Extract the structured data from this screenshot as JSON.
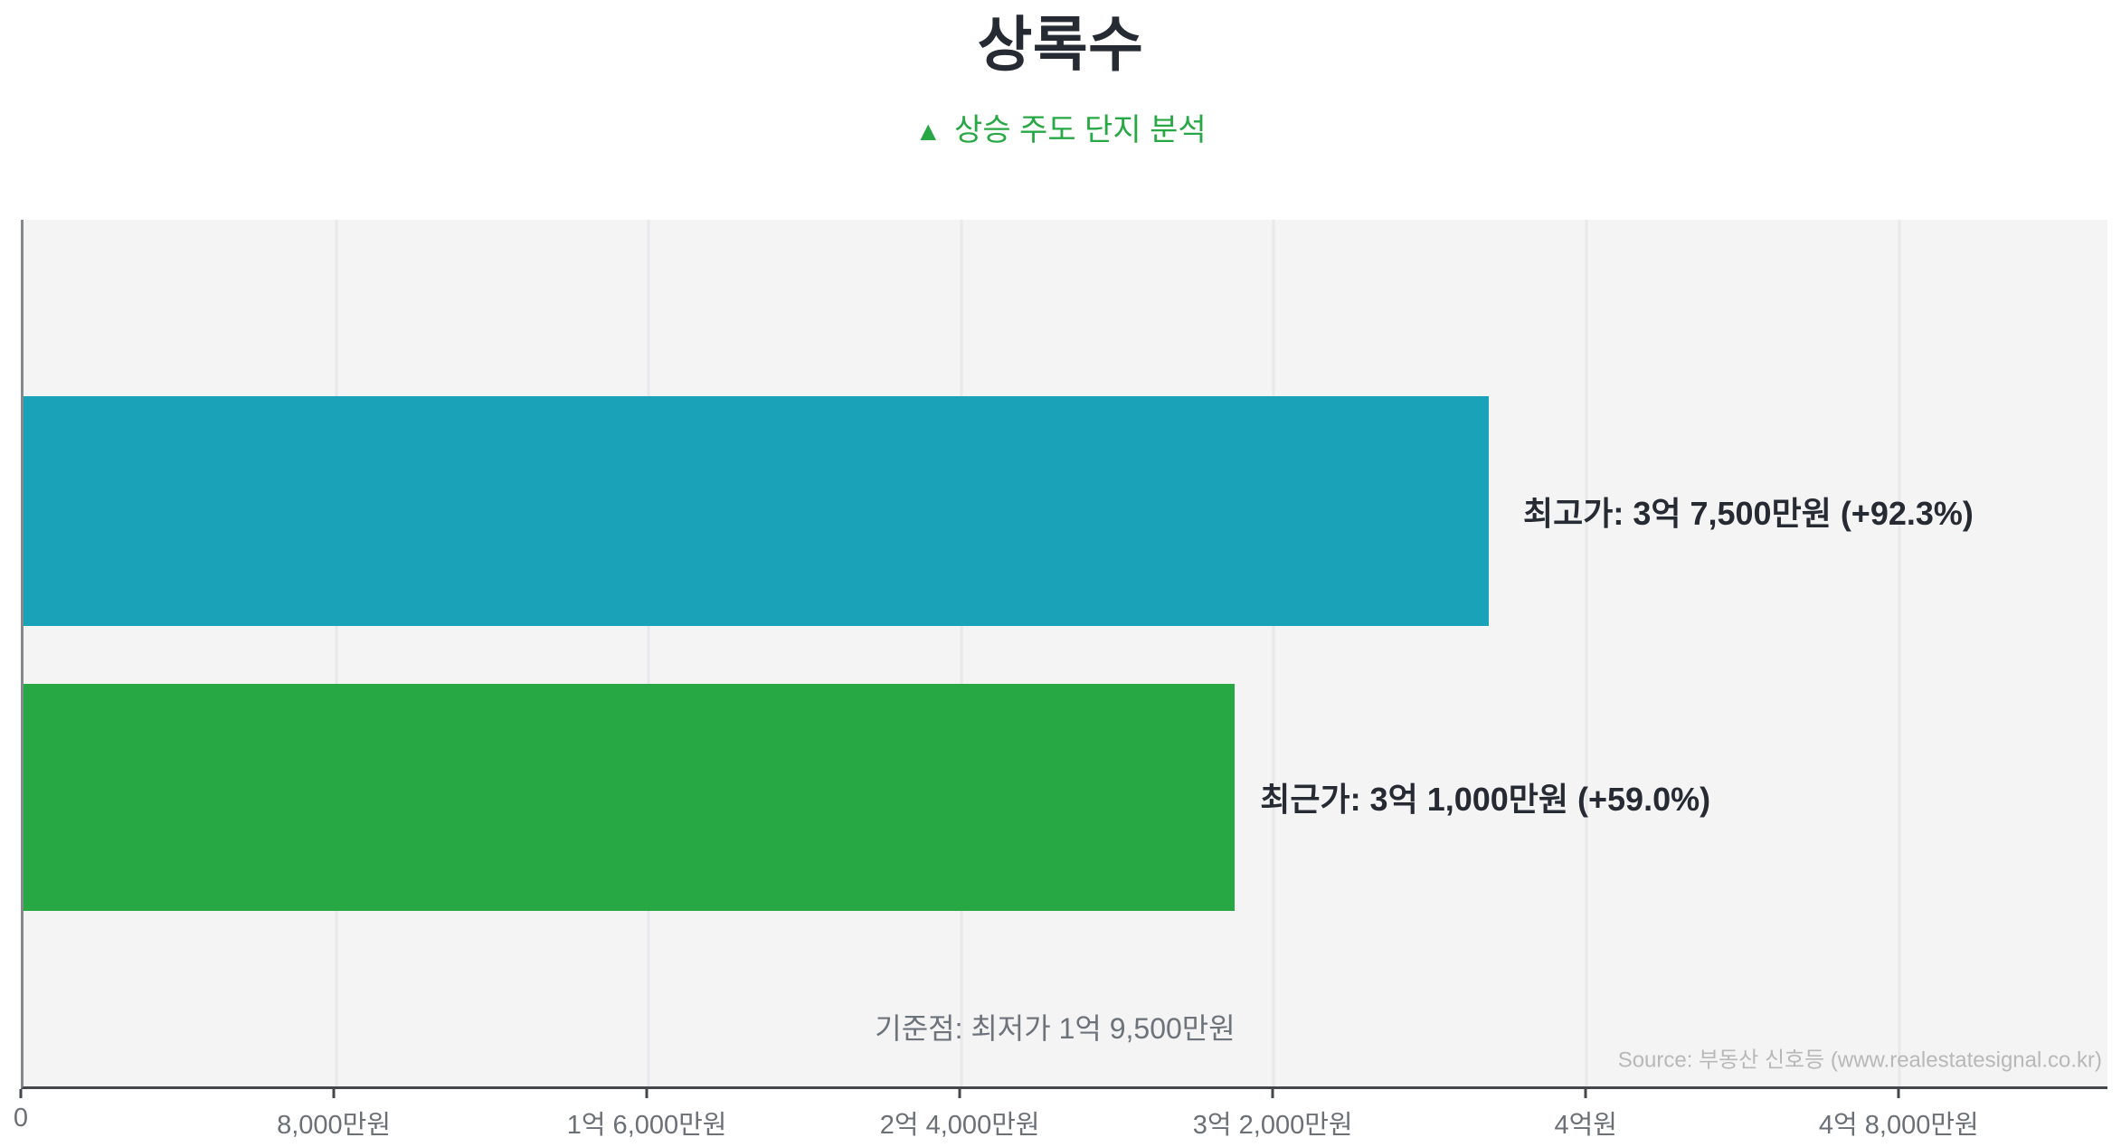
{
  "page": {
    "background": "#ffffff"
  },
  "header": {
    "title": "상록수",
    "subtitle_marker": "▲",
    "subtitle_text": "상승 주도 단지 분석"
  },
  "chart_data": {
    "type": "bar",
    "orientation": "horizontal",
    "unit": "만원",
    "title": "상록수",
    "subtitle": "▲ 상승 주도 단지 분석",
    "series": [
      {
        "name": "최고가",
        "value_man": 37500,
        "display": "최고가: 3억 7,500만원 (+92.3%)",
        "pct_change": "+92.3%",
        "color": "#1aa2b8"
      },
      {
        "name": "최근가",
        "value_man": 31000,
        "display": "최근가: 3억 1,000만원 (+59.0%)",
        "pct_change": "+59.0%",
        "color": "#28a745"
      }
    ],
    "baseline": {
      "label": "기준점: 최저가 1억 9,500만원",
      "value_man": 19500
    },
    "x_ticks": [
      {
        "label": "0",
        "value_man": 0
      },
      {
        "label": "8,000만원",
        "value_man": 8000
      },
      {
        "label": "1억 6,000만원",
        "value_man": 16000
      },
      {
        "label": "2억 4,000만원",
        "value_man": 24000
      },
      {
        "label": "3억 2,000만원",
        "value_man": 32000
      },
      {
        "label": "4억원",
        "value_man": 40000
      },
      {
        "label": "4억 8,000만원",
        "value_man": 48000
      }
    ],
    "xlim_man": [
      0,
      53333
    ],
    "grid": true,
    "legend": false,
    "plot_background": "#f4f4f5",
    "gridline_color": "#e9e9eb"
  },
  "footer": {
    "source": "Source: 부동산 신호등 (www.realestatesignal.co.kr)"
  },
  "colors": {
    "title_text": "#262b33",
    "accent_green": "#28a745",
    "teal": "#1aa2b8",
    "axis_label": "#6a7076",
    "muted_gray": "#6d737b",
    "source_gray": "#b8b8b8"
  }
}
